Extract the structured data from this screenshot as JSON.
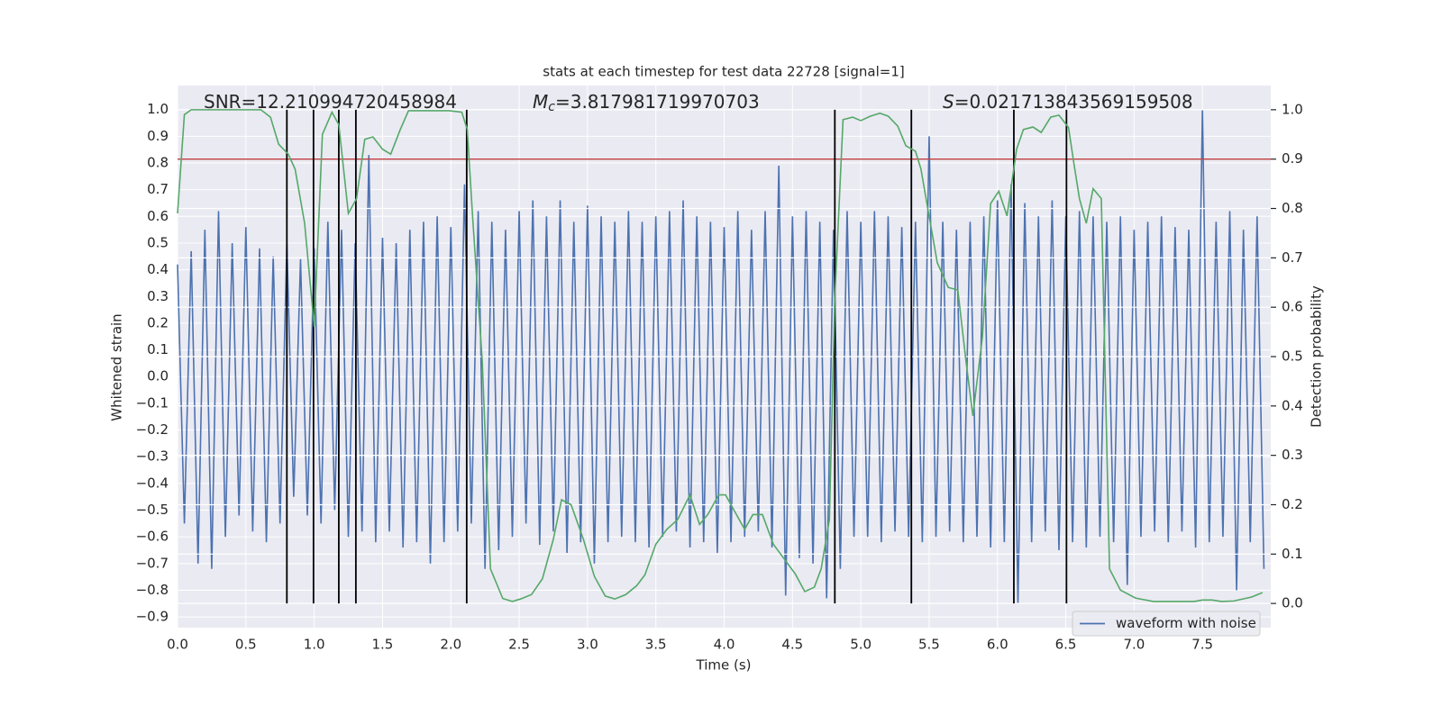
{
  "chart_data": {
    "type": "line",
    "title": "stats at each timestep for test data 22728 [signal=1]",
    "x_label": "Time (s)",
    "y_label": "Whitened strain",
    "y2_label": "Detection probability",
    "annotations": [
      {
        "text": "SNR=12.210994720458984"
      },
      {
        "symbol": "M",
        "sub": "c",
        "text": "=3.817981719970703"
      },
      {
        "symbol": "S",
        "text": "=0.021713843569159508"
      }
    ],
    "xlim": [
      0,
      8
    ],
    "ylim": [
      -0.94,
      1.09
    ],
    "y2lim": [
      -0.049,
      1.049
    ],
    "xticks": [
      {
        "value": 0,
        "label": "0.0"
      },
      0.5,
      {
        "value": 1,
        "label": "1.0"
      },
      1.5,
      {
        "value": 2,
        "label": "2.0"
      },
      2.5,
      {
        "value": 3,
        "label": "3.0"
      },
      3.5,
      {
        "value": 4,
        "label": "4.0"
      },
      4.5,
      {
        "value": 5,
        "label": "5.0"
      },
      5.5,
      {
        "value": 6,
        "label": "6.0"
      },
      6.5,
      {
        "value": 7,
        "label": "7.0"
      },
      7.5
    ],
    "yticks": [
      {
        "value": -0.9,
        "label": "−0.9"
      },
      {
        "value": -0.8,
        "label": "−0.8"
      },
      {
        "value": -0.7,
        "label": "−0.7"
      },
      {
        "value": -0.6,
        "label": "−0.6"
      },
      {
        "value": -0.5,
        "label": "−0.5"
      },
      {
        "value": -0.4,
        "label": "−0.4"
      },
      {
        "value": -0.3,
        "label": "−0.3"
      },
      {
        "value": -0.2,
        "label": "−0.2"
      },
      {
        "value": -0.1,
        "label": "−0.1"
      },
      {
        "value": 0,
        "label": "0.0"
      },
      0.1,
      0.2,
      0.3,
      0.4,
      0.5,
      0.6,
      0.7,
      0.8,
      0.9,
      {
        "value": 1,
        "label": "1.0"
      }
    ],
    "y2ticks": [
      {
        "value": 0,
        "label": "0.0"
      },
      0.1,
      0.2,
      0.3,
      0.4,
      0.5,
      0.6,
      0.7,
      0.8,
      0.9,
      {
        "value": 1,
        "label": "1.0"
      }
    ],
    "grid": true,
    "legend": "lower right",
    "series": [
      {
        "name": "waveform with noise",
        "color": "#4c72b0",
        "x": [
          0,
          0.05,
          0.1,
          0.15,
          0.2,
          0.25,
          0.3,
          0.35,
          0.4,
          0.45,
          0.5,
          0.55,
          0.6,
          0.65,
          0.7,
          0.75,
          0.8,
          0.85,
          0.9,
          0.95,
          1,
          1.05,
          1.1,
          1.15,
          1.2,
          1.25,
          1.3,
          1.35,
          1.4,
          1.45,
          1.5,
          1.55,
          1.6,
          1.65,
          1.7,
          1.75,
          1.8,
          1.85,
          1.9,
          1.95,
          2,
          2.05,
          2.1,
          2.15,
          2.2,
          2.25,
          2.3,
          2.35,
          2.4,
          2.45,
          2.5,
          2.55,
          2.6,
          2.65,
          2.7,
          2.75,
          2.8,
          2.85,
          2.9,
          2.95,
          3,
          3.05,
          3.1,
          3.15,
          3.2,
          3.25,
          3.3,
          3.35,
          3.4,
          3.45,
          3.5,
          3.55,
          3.6,
          3.65,
          3.7,
          3.75,
          3.8,
          3.85,
          3.9,
          3.95,
          4,
          4.05,
          4.1,
          4.15,
          4.2,
          4.25,
          4.3,
          4.35,
          4.4,
          4.45,
          4.5,
          4.55,
          4.6,
          4.65,
          4.7,
          4.75,
          4.8,
          4.85,
          4.9,
          4.95,
          5,
          5.05,
          5.1,
          5.15,
          5.2,
          5.25,
          5.3,
          5.35,
          5.4,
          5.45,
          5.5,
          5.55,
          5.6,
          5.65,
          5.7,
          5.75,
          5.8,
          5.85,
          5.9,
          5.95,
          6,
          6.05,
          6.1,
          6.15,
          6.2,
          6.25,
          6.3,
          6.35,
          6.4,
          6.45,
          6.5,
          6.55,
          6.6,
          6.65,
          6.7,
          6.75,
          6.8,
          6.85,
          6.9,
          6.95,
          7,
          7.05,
          7.1,
          7.15,
          7.2,
          7.25,
          7.3,
          7.35,
          7.4,
          7.45,
          7.5,
          7.55,
          7.6,
          7.65,
          7.7,
          7.75,
          7.8,
          7.85,
          7.9,
          7.95
        ],
        "values": [
          0.42,
          -0.55,
          0.47,
          -0.7,
          0.55,
          -0.72,
          0.62,
          -0.6,
          0.5,
          -0.52,
          0.56,
          -0.58,
          0.48,
          -0.62,
          0.45,
          -0.55,
          0.5,
          -0.45,
          0.44,
          -0.52,
          0.48,
          -0.55,
          0.58,
          -0.5,
          0.55,
          -0.6,
          0.5,
          -0.58,
          0.83,
          -0.62,
          0.52,
          -0.58,
          0.5,
          -0.64,
          0.55,
          -0.62,
          0.58,
          -0.7,
          0.6,
          -0.62,
          0.56,
          -0.58,
          0.72,
          -0.55,
          0.62,
          -0.72,
          0.58,
          -0.65,
          0.55,
          -0.6,
          0.62,
          -0.55,
          0.66,
          -0.63,
          0.6,
          -0.58,
          0.66,
          -0.66,
          0.58,
          -0.62,
          0.64,
          -0.7,
          0.6,
          -0.62,
          0.58,
          -0.6,
          0.62,
          -0.62,
          0.58,
          -0.64,
          0.6,
          -0.6,
          0.62,
          -0.58,
          0.66,
          -0.64,
          0.6,
          -0.62,
          0.58,
          -0.66,
          0.56,
          -0.62,
          0.62,
          -0.6,
          0.55,
          -0.58,
          0.62,
          -0.64,
          0.79,
          -0.82,
          0.6,
          -0.68,
          0.62,
          -0.7,
          0.58,
          -0.83,
          0.55,
          -0.72,
          0.62,
          -0.6,
          0.58,
          -0.6,
          0.62,
          -0.62,
          0.6,
          -0.58,
          0.56,
          -0.6,
          0.58,
          -0.62,
          0.9,
          -0.6,
          0.58,
          -0.58,
          0.55,
          -0.62,
          0.58,
          -0.6,
          0.6,
          -0.64,
          0.66,
          -0.62,
          0.72,
          -0.85,
          0.65,
          -0.62,
          0.6,
          -0.58,
          0.66,
          -0.65,
          0.6,
          -0.62,
          0.62,
          -0.64,
          0.6,
          -0.6,
          0.58,
          -0.62,
          0.6,
          -0.78,
          0.55,
          -0.6,
          0.58,
          -0.58,
          0.6,
          -0.62,
          0.56,
          -0.58,
          0.55,
          -0.64,
          1.0,
          -0.62,
          0.58,
          -0.6,
          0.62,
          -0.8,
          0.55,
          -0.62,
          0.6,
          -0.72
        ]
      }
    ],
    "y2_series": {
      "color": "#55a868",
      "axis": "y2",
      "x": [
        0,
        0.05,
        0.1,
        0.61,
        0.68,
        0.74,
        0.81,
        0.86,
        0.93,
        1,
        1.06,
        1.13,
        1.18,
        1.25,
        1.31,
        1.37,
        1.43,
        1.5,
        1.56,
        1.63,
        1.69,
        1.99,
        2.08,
        2.12,
        2.16,
        2.23,
        2.29,
        2.38,
        2.45,
        2.51,
        2.59,
        2.67,
        2.75,
        2.81,
        2.88,
        2.97,
        3.05,
        3.13,
        3.2,
        3.28,
        3.36,
        3.42,
        3.5,
        3.58,
        3.66,
        3.75,
        3.82,
        3.88,
        3.96,
        4.01,
        4.09,
        4.15,
        4.21,
        4.28,
        4.36,
        4.44,
        4.52,
        4.59,
        4.66,
        4.71,
        4.77,
        4.81,
        4.87,
        4.94,
        5,
        5.07,
        5.14,
        5.2,
        5.27,
        5.33,
        5.4,
        5.44,
        5.49,
        5.56,
        5.64,
        5.71,
        5.77,
        5.82,
        5.89,
        5.95,
        6.01,
        6.07,
        6.14,
        6.19,
        6.26,
        6.32,
        6.39,
        6.45,
        6.52,
        6.56,
        6.6,
        6.65,
        6.7,
        6.76,
        6.82,
        6.9,
        7.01,
        7.14,
        7.27,
        7.44,
        7.5,
        7.57,
        7.64,
        7.73,
        7.86,
        7.94
      ],
      "values": [
        0.79,
        0.99,
        1.0,
        1.0,
        0.985,
        0.93,
        0.91,
        0.88,
        0.77,
        0.56,
        0.95,
        0.995,
        0.97,
        0.79,
        0.82,
        0.94,
        0.945,
        0.92,
        0.91,
        0.96,
        0.998,
        0.998,
        0.995,
        0.96,
        0.78,
        0.49,
        0.07,
        0.01,
        0.004,
        0.009,
        0.018,
        0.05,
        0.13,
        0.21,
        0.2,
        0.13,
        0.055,
        0.015,
        0.009,
        0.018,
        0.036,
        0.058,
        0.12,
        0.15,
        0.17,
        0.22,
        0.16,
        0.18,
        0.22,
        0.22,
        0.18,
        0.15,
        0.18,
        0.18,
        0.12,
        0.09,
        0.06,
        0.024,
        0.033,
        0.07,
        0.17,
        0.62,
        0.98,
        0.985,
        0.978,
        0.987,
        0.993,
        0.987,
        0.967,
        0.927,
        0.916,
        0.88,
        0.8,
        0.69,
        0.64,
        0.635,
        0.49,
        0.38,
        0.54,
        0.81,
        0.835,
        0.785,
        0.92,
        0.96,
        0.965,
        0.954,
        0.985,
        0.989,
        0.964,
        0.89,
        0.82,
        0.77,
        0.84,
        0.82,
        0.07,
        0.027,
        0.011,
        0.004,
        0.004,
        0.004,
        0.007,
        0.007,
        0.004,
        0.005,
        0.013,
        0.022
      ]
    },
    "threshold": {
      "value": 0.9,
      "color": "#c03d3e",
      "axis": "y2"
    },
    "markers": {
      "color": "#000000",
      "axis": "y2",
      "span": [
        0,
        1
      ],
      "x": [
        0.8,
        0.995,
        1.18,
        1.305,
        2.116,
        4.81,
        5.37,
        6.12,
        6.505
      ]
    }
  }
}
